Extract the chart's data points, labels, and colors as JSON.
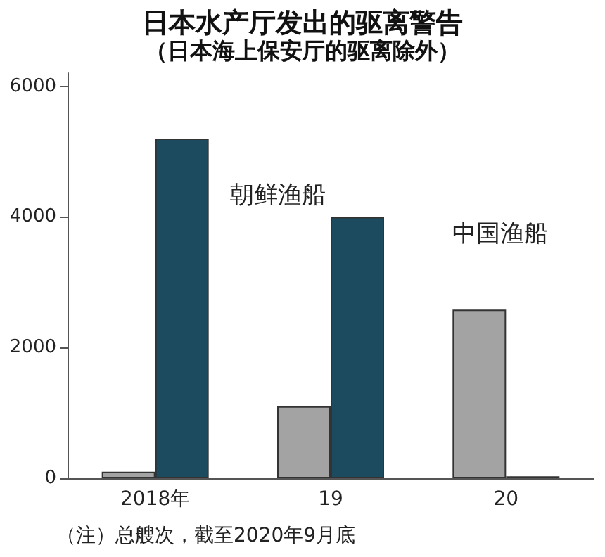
{
  "chart_data": {
    "type": "bar",
    "title": "日本水产厅发出的驱离警告",
    "subtitle": "（日本海上保安厅的驱离除外）",
    "categories": [
      "2018年",
      "19",
      "20"
    ],
    "series": [
      {
        "name": "中国渔船",
        "color": "#a3a3a3",
        "values": [
          100,
          1100,
          2580
        ]
      },
      {
        "name": "朝鲜渔船",
        "color": "#1c4a5e",
        "values": [
          5200,
          4000,
          30
        ]
      }
    ],
    "ylim": [
      0,
      6200
    ],
    "yticks": [
      0,
      2000,
      4000,
      6000
    ],
    "grid": false,
    "legend": false,
    "annotations": [
      "（注）总艘次，截至2020年9月底"
    ]
  }
}
